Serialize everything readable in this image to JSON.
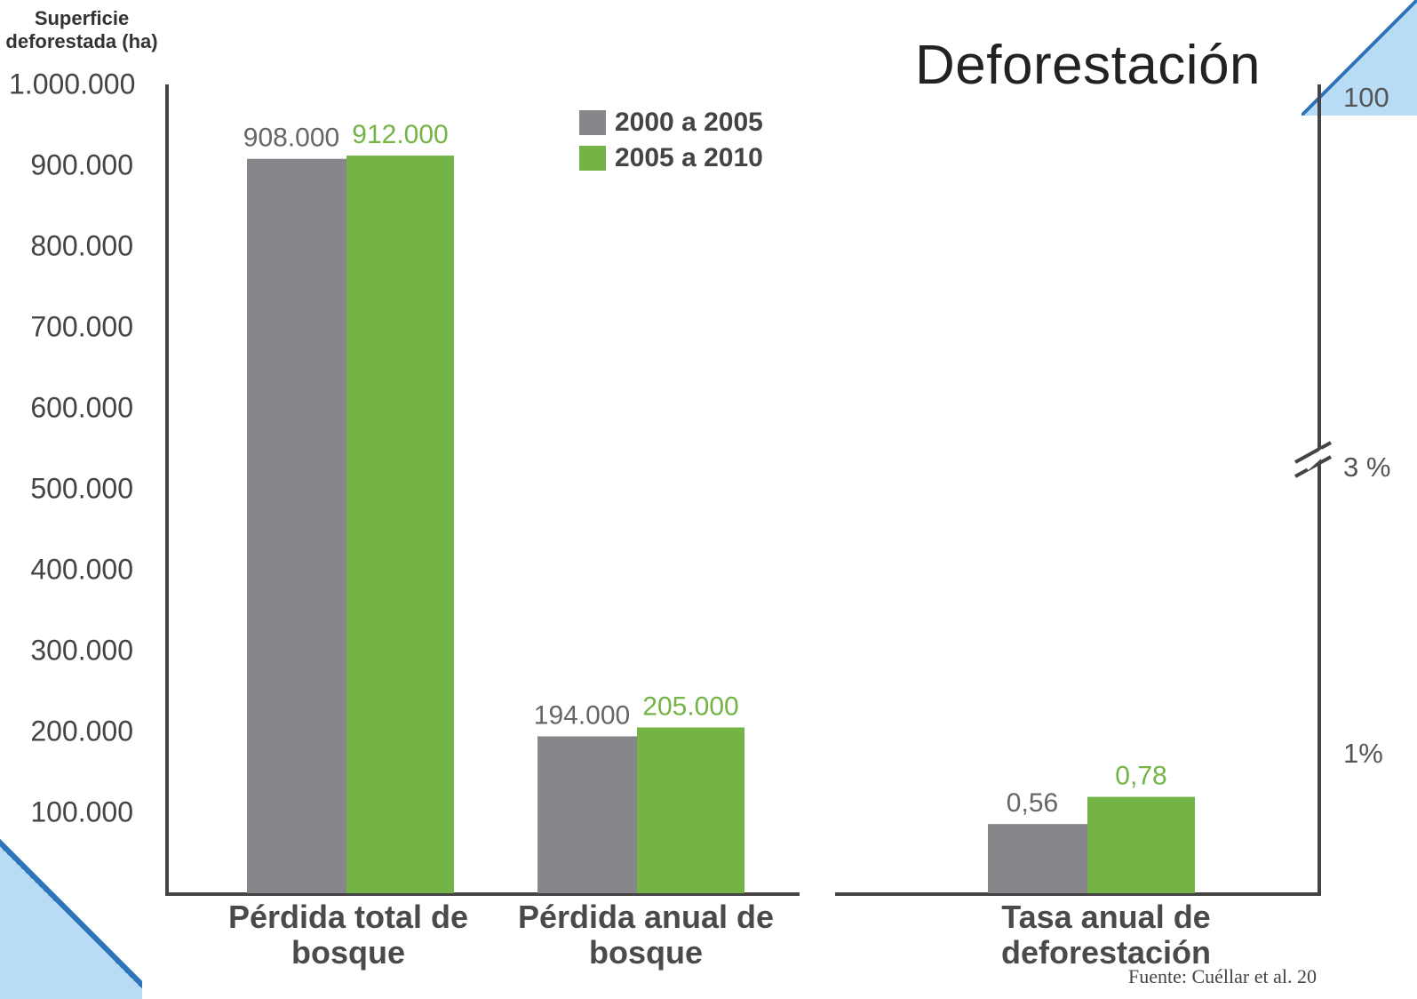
{
  "chart_data": {
    "type": "bar",
    "title": "Deforestación",
    "ylabel": "Superficie\ndeforestada (ha)",
    "y_ticks": [
      "1.000.000",
      "900.000",
      "800.000",
      "700.000",
      "600.000",
      "500.000",
      "400.000",
      "300.000",
      "200.000",
      "100.000"
    ],
    "y_tick_values": [
      1000000,
      900000,
      800000,
      700000,
      600000,
      500000,
      400000,
      300000,
      200000,
      100000
    ],
    "ylim": [
      0,
      1000000
    ],
    "y2_ticks": [
      "100",
      "3 %",
      "1%"
    ],
    "categories": [
      "Pérdida total de bosque",
      "Pérdida anual de bosque",
      "Tasa anual de deforestación"
    ],
    "series": [
      {
        "name": "2000 a 2005",
        "color": "#87868b",
        "values": [
          908000,
          194000,
          0.56
        ],
        "labels": [
          "908.000",
          "194.000",
          "0,56"
        ]
      },
      {
        "name": "2005 a 2010",
        "color": "#74b446",
        "values": [
          912000,
          205000,
          0.78
        ],
        "labels": [
          "912.000",
          "205.000",
          "0,78"
        ]
      }
    ],
    "legend_position": "top-center",
    "grid": false,
    "source": "Fuente: Cuéllar et al. 20"
  },
  "colors": {
    "axis": "#444444",
    "gray_label": "#666666",
    "green_label": "#74b446"
  }
}
